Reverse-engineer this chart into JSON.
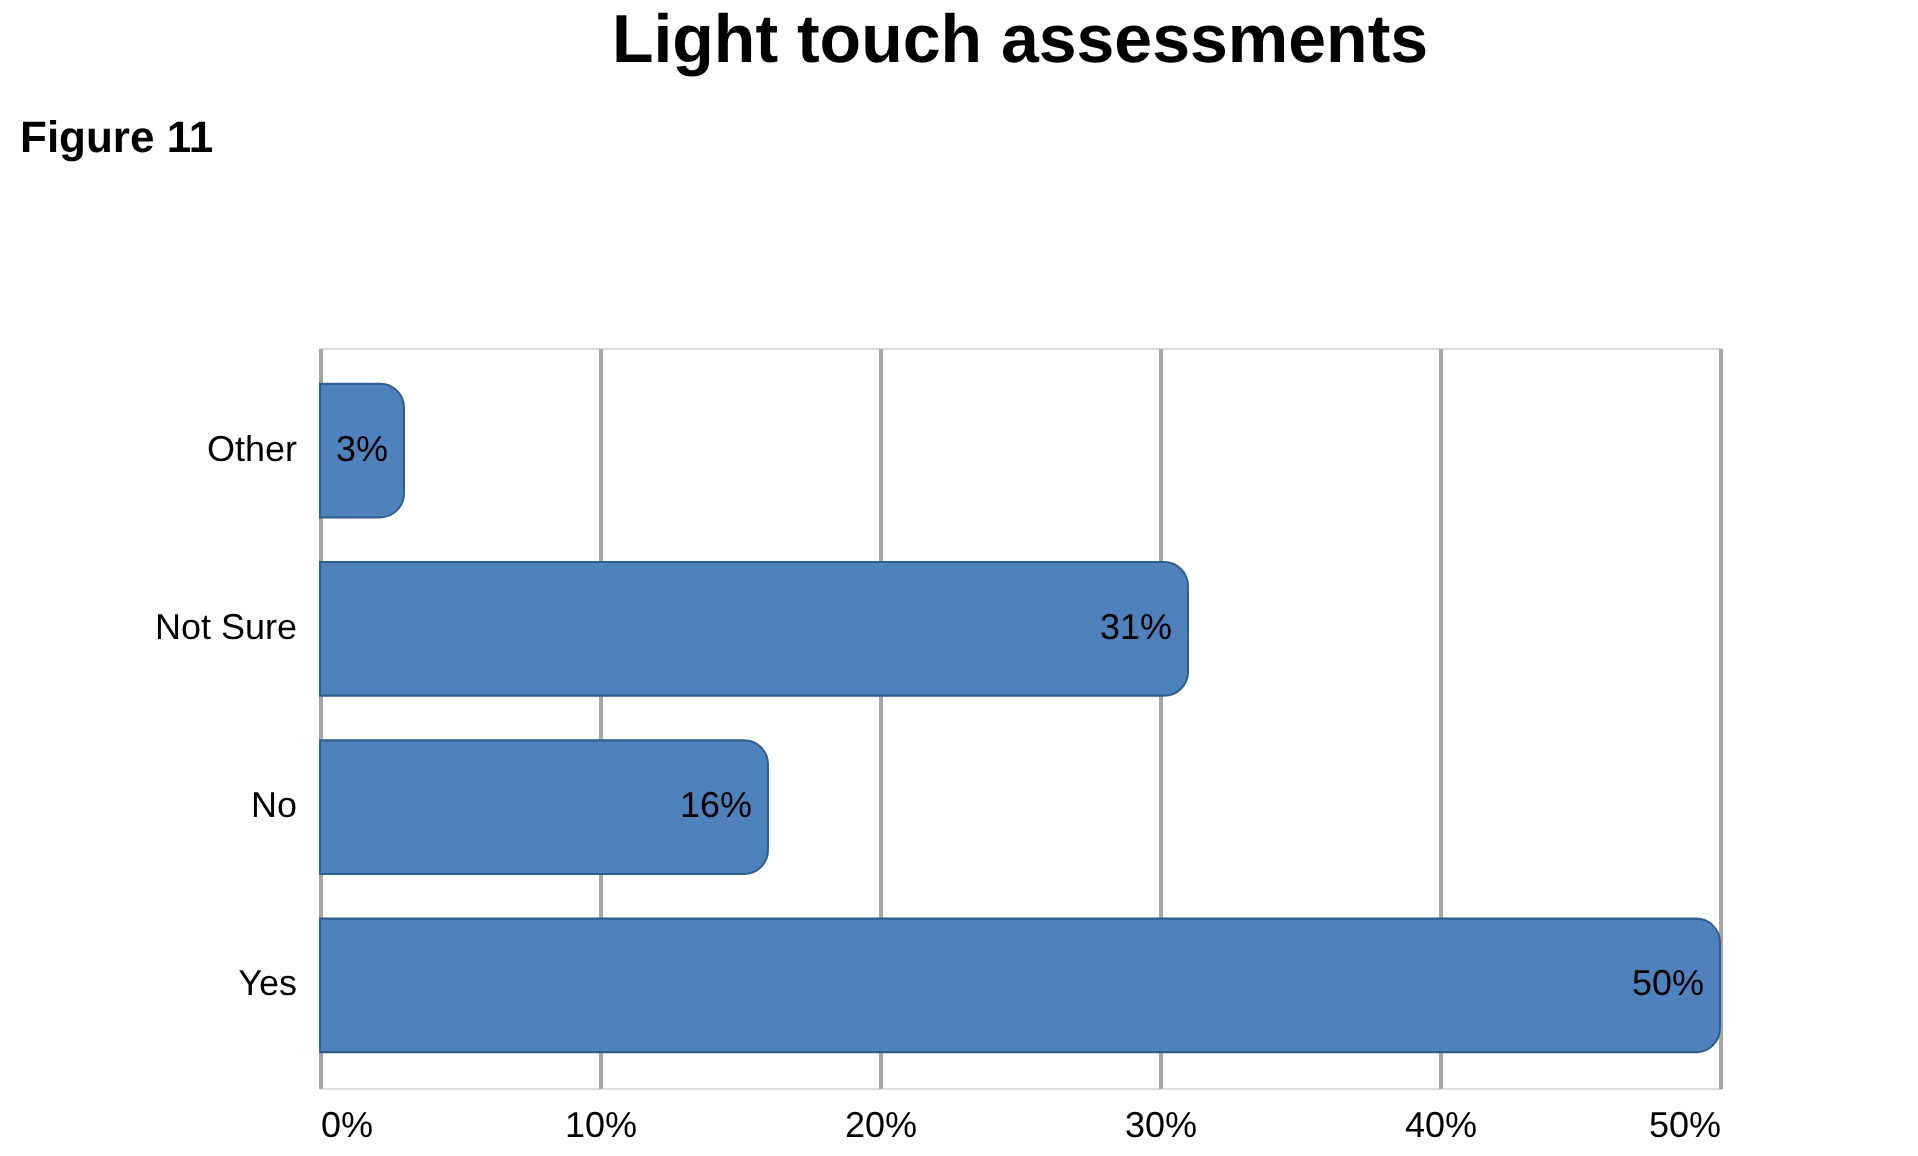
{
  "chart_data": {
    "type": "bar",
    "orientation": "horizontal",
    "title": "Light touch assessments",
    "annotations": [
      "Figure 11"
    ],
    "categories": [
      "Other",
      "Not Sure",
      "No",
      "Yes"
    ],
    "values": [
      3,
      31,
      16,
      50
    ],
    "value_labels": [
      "3%",
      "31%",
      "16%",
      "50%"
    ],
    "color": "#4f81bd",
    "xlim": [
      0,
      50
    ],
    "xticks": [
      {
        "value": 0,
        "label": "0%"
      },
      {
        "value": 10,
        "label": "10%"
      },
      {
        "value": 20,
        "label": "20%"
      },
      {
        "value": 30,
        "label": "30%"
      },
      {
        "value": 40,
        "label": "40%"
      },
      {
        "value": 50,
        "label": "50%"
      }
    ],
    "grid": "x"
  }
}
